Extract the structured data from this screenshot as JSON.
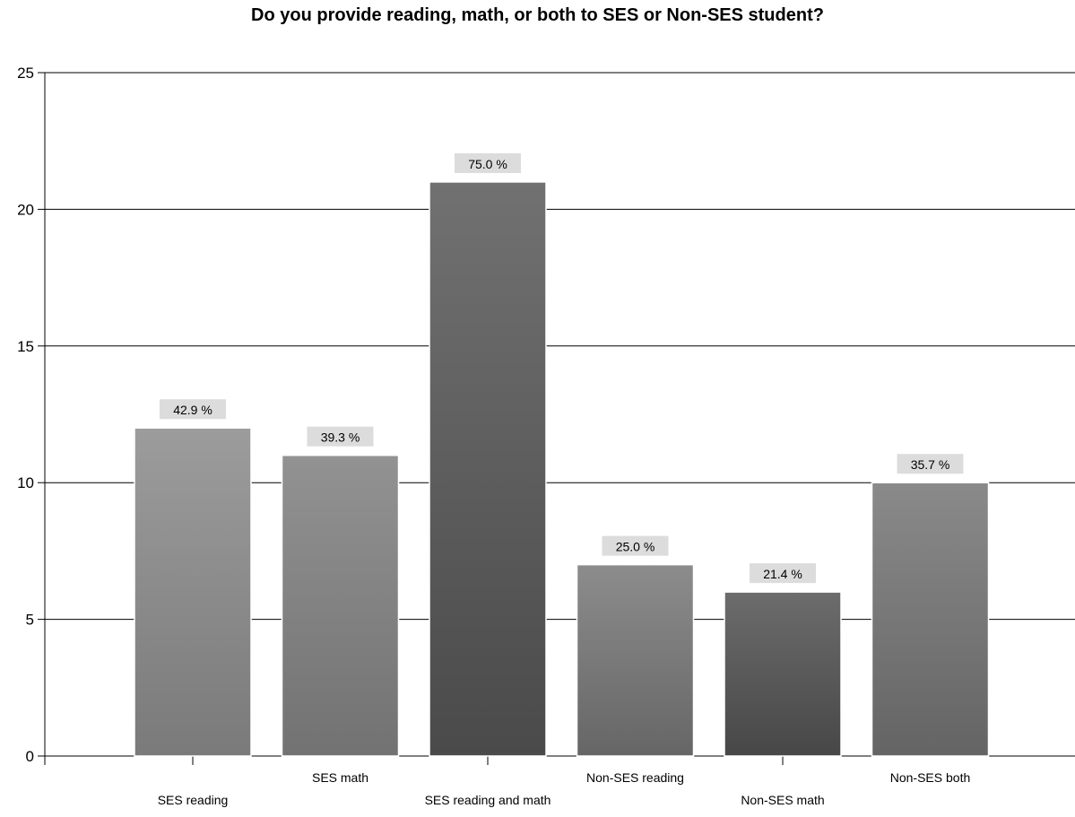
{
  "chart_data": {
    "type": "bar",
    "title": "Do you provide reading, math, or both to SES or Non-SES student?",
    "xlabel": "",
    "ylabel": "",
    "ylim": [
      0,
      25
    ],
    "yticks": [
      0,
      5,
      10,
      15,
      20,
      25
    ],
    "grid": true,
    "categories": [
      "SES reading",
      "SES math",
      "SES reading and math",
      "Non-SES reading",
      "Non-SES math",
      "Non-SES both"
    ],
    "values": [
      12,
      11,
      21,
      7,
      6,
      10
    ],
    "data_labels": [
      "42.9 %",
      "39.3 %",
      "75.0 %",
      "25.0 %",
      "21.4 %",
      "35.7 %"
    ],
    "colors": [
      [
        "#9c9c9c",
        "#7a7a7a"
      ],
      [
        "#929292",
        "#727272"
      ],
      [
        "#717171",
        "#4a4a4a"
      ],
      [
        "#8c8c8c",
        "#666666"
      ],
      [
        "#6c6c6c",
        "#474747"
      ],
      [
        "#8a8a8a",
        "#646464"
      ]
    ]
  }
}
